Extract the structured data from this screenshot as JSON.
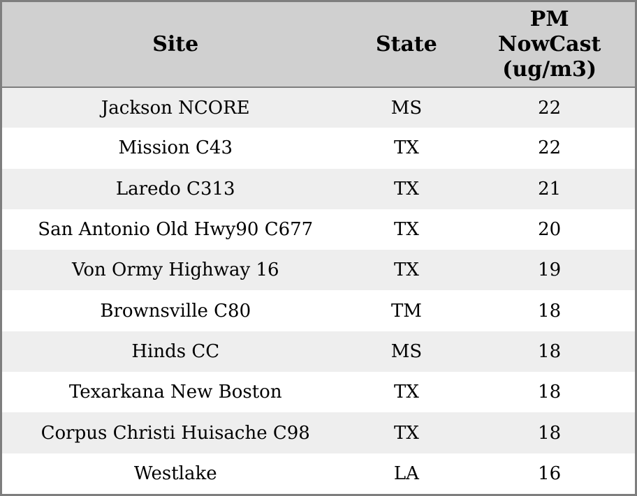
{
  "title": "PM NowCast site readings table",
  "colors": {
    "border_color": "#7e7e7e",
    "header_bg": "#d0d0d0",
    "row_alt_bg": "#eeeeee",
    "row_bg": "#ffffff",
    "text_color": "#000000"
  },
  "headers_display": [
    "Site",
    "State",
    "PM\nNowCast\n(ug/m3)"
  ],
  "chart_data": {
    "type": "table",
    "columns": [
      "Site",
      "State",
      "PM NowCast (ug/m3)"
    ],
    "rows": [
      [
        "Jackson NCORE",
        "MS",
        22
      ],
      [
        "Mission C43",
        "TX",
        22
      ],
      [
        "Laredo C313",
        "TX",
        21
      ],
      [
        "San Antonio Old Hwy90 C677",
        "TX",
        20
      ],
      [
        "Von Ormy Highway 16",
        "TX",
        19
      ],
      [
        "Brownsville C80",
        "TM",
        18
      ],
      [
        "Hinds CC",
        "MS",
        18
      ],
      [
        "Texarkana New Boston",
        "TX",
        18
      ],
      [
        "Corpus Christi Huisache C98",
        "TX",
        18
      ],
      [
        "Westlake",
        "LA",
        16
      ]
    ]
  }
}
